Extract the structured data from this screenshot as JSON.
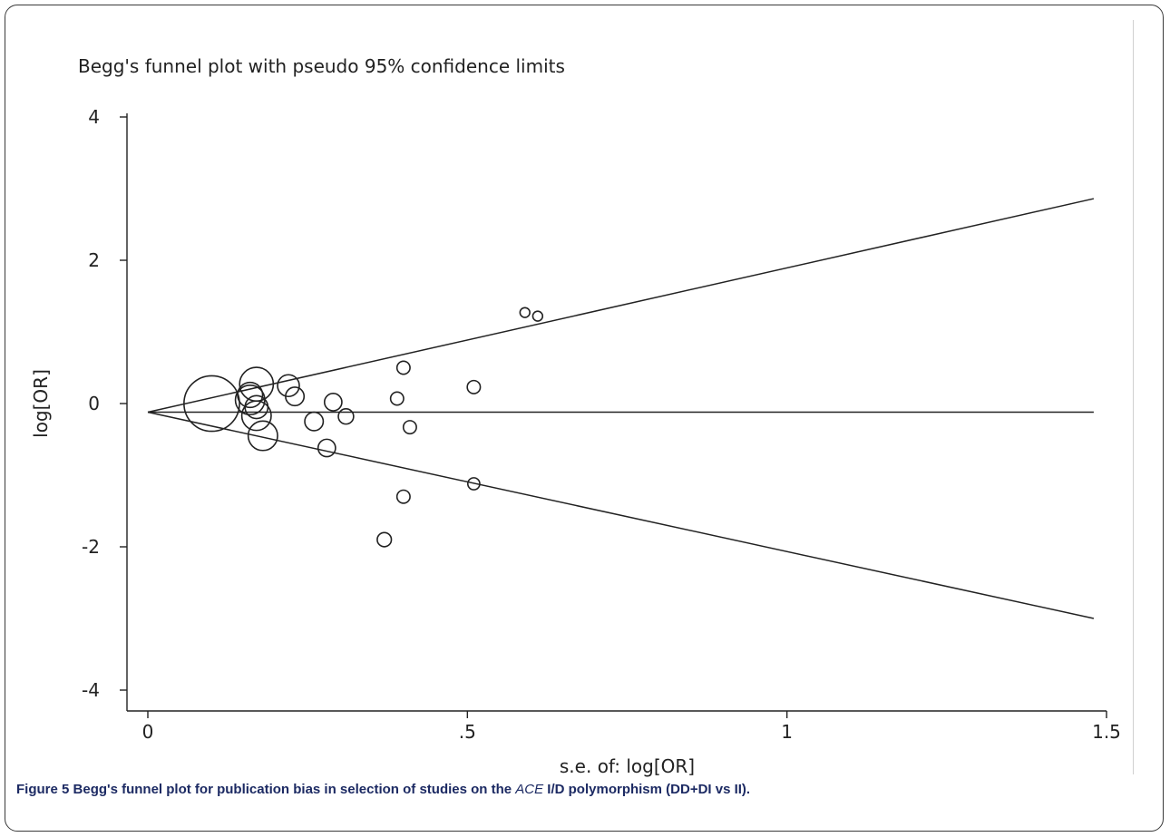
{
  "chart_data": {
    "type": "scatter",
    "title": "Begg's funnel plot with pseudo 95% confidence limits",
    "xlabel": "s.e. of: log[OR]",
    "ylabel": "log[OR]",
    "xlim": [
      0,
      1.5
    ],
    "ylim": [
      -4,
      4
    ],
    "x_ticks": [
      0,
      0.5,
      1,
      1.5
    ],
    "x_tick_labels": [
      "0",
      ".5",
      "1",
      "1.5"
    ],
    "y_ticks": [
      4,
      2,
      0,
      -2,
      -4
    ],
    "y_tick_labels": [
      "4",
      "2",
      "0",
      "-2",
      "-4"
    ],
    "grid": false,
    "pooled_log_or": -0.12,
    "confidence_limits": {
      "se_range": [
        0,
        1.48
      ],
      "upper_at_max": 2.86,
      "lower_at_max": -3.0
    },
    "series": [
      {
        "points": [
          {
            "se": 0.1,
            "log_or": 0.0,
            "weight": 4.6
          },
          {
            "se": 0.17,
            "log_or": 0.27,
            "weight": 2.6
          },
          {
            "se": 0.16,
            "log_or": 0.05,
            "weight": 2.2
          },
          {
            "se": 0.17,
            "log_or": -0.17,
            "weight": 2.2
          },
          {
            "se": 0.18,
            "log_or": -0.45,
            "weight": 2.2
          },
          {
            "se": 0.16,
            "log_or": 0.12,
            "weight": 1.8
          },
          {
            "se": 0.17,
            "log_or": -0.05,
            "weight": 1.6
          },
          {
            "se": 0.22,
            "log_or": 0.25,
            "weight": 1.5
          },
          {
            "se": 0.23,
            "log_or": 0.1,
            "weight": 1.2
          },
          {
            "se": 0.26,
            "log_or": -0.25,
            "weight": 1.2
          },
          {
            "se": 0.29,
            "log_or": 0.02,
            "weight": 1.1
          },
          {
            "se": 0.28,
            "log_or": -0.62,
            "weight": 1.1
          },
          {
            "se": 0.31,
            "log_or": -0.18,
            "weight": 0.9
          },
          {
            "se": 0.37,
            "log_or": -1.9,
            "weight": 0.8
          },
          {
            "se": 0.39,
            "log_or": 0.07,
            "weight": 0.7
          },
          {
            "se": 0.4,
            "log_or": 0.5,
            "weight": 0.7
          },
          {
            "se": 0.4,
            "log_or": -1.3,
            "weight": 0.7
          },
          {
            "se": 0.41,
            "log_or": -0.33,
            "weight": 0.7
          },
          {
            "se": 0.51,
            "log_or": 0.23,
            "weight": 0.7
          },
          {
            "se": 0.51,
            "log_or": -1.12,
            "weight": 0.6
          },
          {
            "se": 0.59,
            "log_or": 1.27,
            "weight": 0.4
          },
          {
            "se": 0.61,
            "log_or": 1.22,
            "weight": 0.4
          }
        ]
      }
    ]
  },
  "caption": {
    "label": "Figure 5",
    "text_before": " Begg's funnel plot for publication bias in selection of studies on the ",
    "gene": "ACE",
    "text_after": " I/D polymorphism (DD+DI vs II)."
  }
}
